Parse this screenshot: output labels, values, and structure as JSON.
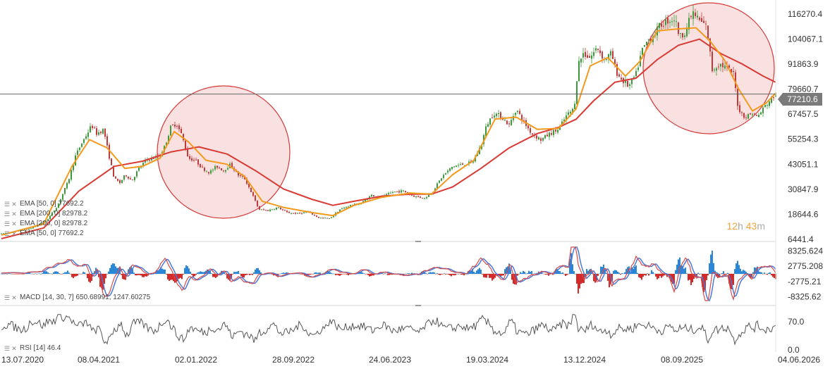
{
  "chart_data": [
    {
      "type": "candlestick",
      "y_ticks": [
        "116270.4",
        "104067.1",
        "91863.9",
        "79660.7",
        "67457.5",
        "55254.3",
        "43051.1",
        "30847.9",
        "18644.6",
        "6441.4"
      ],
      "ylim": [
        6441.4,
        122372
      ],
      "x_ticks": [
        "13.07.2020",
        "08.04.2021",
        "02.01.2022",
        "28.09.2022",
        "24.06.2023",
        "19.03.2024",
        "13.12.2024",
        "08.09.2025",
        "04.06.2026"
      ],
      "current_price": "77210.6",
      "timer": {
        "hours": "12",
        "h_label": "h",
        "minutes": "43",
        "m_label": "m"
      },
      "legend": [
        "EMA [50, 0] 77692.2",
        "EMA [200, 0] 82978.2",
        "EMA [200, 0] 82978.2",
        "EMA [50, 0] 77692.2"
      ],
      "close_series": [
        [
          0,
          9200
        ],
        [
          40,
          11500
        ],
        [
          65,
          16000
        ],
        [
          80,
          23000
        ],
        [
          95,
          35000
        ],
        [
          105,
          47000
        ],
        [
          112,
          52000
        ],
        [
          120,
          57000
        ],
        [
          128,
          62000
        ],
        [
          135,
          58000
        ],
        [
          145,
          60000
        ],
        [
          152,
          48000
        ],
        [
          160,
          36000
        ],
        [
          168,
          34000
        ],
        [
          176,
          38000
        ],
        [
          185,
          35000
        ],
        [
          195,
          41000
        ],
        [
          205,
          45000
        ],
        [
          215,
          46000
        ],
        [
          225,
          47500
        ],
        [
          232,
          52000
        ],
        [
          240,
          61000
        ],
        [
          248,
          63000
        ],
        [
          256,
          57000
        ],
        [
          265,
          46000
        ],
        [
          275,
          45000
        ],
        [
          285,
          41000
        ],
        [
          295,
          39000
        ],
        [
          305,
          42000
        ],
        [
          315,
          40000
        ],
        [
          325,
          43000
        ],
        [
          335,
          38000
        ],
        [
          345,
          36000
        ],
        [
          355,
          29000
        ],
        [
          365,
          21000
        ],
        [
          378,
          20500
        ],
        [
          392,
          22000
        ],
        [
          405,
          19500
        ],
        [
          420,
          19000
        ],
        [
          435,
          19800
        ],
        [
          450,
          17000
        ],
        [
          465,
          16500
        ],
        [
          480,
          21000
        ],
        [
          495,
          23000
        ],
        [
          510,
          24000
        ],
        [
          525,
          28000
        ],
        [
          540,
          27000
        ],
        [
          555,
          29500
        ],
        [
          570,
          30000
        ],
        [
          585,
          27500
        ],
        [
          600,
          26500
        ],
        [
          612,
          30000
        ],
        [
          625,
          37000
        ],
        [
          640,
          42000
        ],
        [
          655,
          43000
        ],
        [
          668,
          44000
        ],
        [
          680,
          52000
        ],
        [
          688,
          62000
        ],
        [
          698,
          68000
        ],
        [
          710,
          66000
        ],
        [
          720,
          62000
        ],
        [
          730,
          70000
        ],
        [
          740,
          64000
        ],
        [
          752,
          58000
        ],
        [
          765,
          55000
        ],
        [
          778,
          58000
        ],
        [
          790,
          60000
        ],
        [
          802,
          67000
        ],
        [
          812,
          70000
        ],
        [
          818,
          92000
        ],
        [
          825,
          97000
        ],
        [
          835,
          95000
        ],
        [
          845,
          100000
        ],
        [
          855,
          94000
        ],
        [
          865,
          97000
        ],
        [
          872,
          88000
        ],
        [
          880,
          84000
        ],
        [
          890,
          81000
        ],
        [
          900,
          87000
        ],
        [
          908,
          98000
        ],
        [
          916,
          103000
        ],
        [
          925,
          106000
        ],
        [
          935,
          111000
        ],
        [
          945,
          113000
        ],
        [
          955,
          114000
        ],
        [
          962,
          105000
        ],
        [
          970,
          108000
        ],
        [
          980,
          117000
        ],
        [
          990,
          113000
        ],
        [
          1000,
          110000
        ],
        [
          1008,
          89000
        ],
        [
          1018,
          92000
        ],
        [
          1028,
          90000
        ],
        [
          1038,
          87000
        ],
        [
          1045,
          70000
        ],
        [
          1055,
          66000
        ],
        [
          1065,
          68000
        ],
        [
          1072,
          66000
        ],
        [
          1082,
          71000
        ],
        [
          1092,
          75000
        ],
        [
          1098,
          77210
        ]
      ],
      "ema50": [
        [
          0,
          8500
        ],
        [
          60,
          14000
        ],
        [
          100,
          42000
        ],
        [
          125,
          55000
        ],
        [
          150,
          51000
        ],
        [
          175,
          41000
        ],
        [
          200,
          42000
        ],
        [
          225,
          46000
        ],
        [
          245,
          59000
        ],
        [
          265,
          54000
        ],
        [
          290,
          45000
        ],
        [
          320,
          43000
        ],
        [
          345,
          37000
        ],
        [
          370,
          25000
        ],
        [
          400,
          22000
        ],
        [
          440,
          19500
        ],
        [
          470,
          18000
        ],
        [
          500,
          23000
        ],
        [
          540,
          27000
        ],
        [
          580,
          29000
        ],
        [
          610,
          28500
        ],
        [
          640,
          38000
        ],
        [
          670,
          45000
        ],
        [
          700,
          65000
        ],
        [
          730,
          66000
        ],
        [
          760,
          60000
        ],
        [
          790,
          60500
        ],
        [
          815,
          70000
        ],
        [
          835,
          91000
        ],
        [
          860,
          95000
        ],
        [
          885,
          86000
        ],
        [
          905,
          93000
        ],
        [
          930,
          108000
        ],
        [
          960,
          109000
        ],
        [
          985,
          109500
        ],
        [
          1005,
          103000
        ],
        [
          1025,
          94000
        ],
        [
          1045,
          80000
        ],
        [
          1065,
          69000
        ],
        [
          1085,
          73000
        ],
        [
          1098,
          77692
        ]
      ],
      "ema200": [
        [
          0,
          6800
        ],
        [
          60,
          12000
        ],
        [
          110,
          30000
        ],
        [
          160,
          42000
        ],
        [
          200,
          44500
        ],
        [
          240,
          49000
        ],
        [
          280,
          51500
        ],
        [
          320,
          48000
        ],
        [
          360,
          40000
        ],
        [
          400,
          31000
        ],
        [
          440,
          26000
        ],
        [
          470,
          23000
        ],
        [
          500,
          25000
        ],
        [
          540,
          27500
        ],
        [
          580,
          28500
        ],
        [
          610,
          28500
        ],
        [
          640,
          32000
        ],
        [
          680,
          41000
        ],
        [
          720,
          51000
        ],
        [
          760,
          58000
        ],
        [
          790,
          61000
        ],
        [
          815,
          65000
        ],
        [
          840,
          74000
        ],
        [
          870,
          83000
        ],
        [
          900,
          85000
        ],
        [
          930,
          94000
        ],
        [
          960,
          101000
        ],
        [
          990,
          104000
        ],
        [
          1020,
          97000
        ],
        [
          1050,
          92000
        ],
        [
          1080,
          86000
        ],
        [
          1098,
          82978
        ]
      ],
      "highlight_circles": [
        "2022 bear market zone",
        "2025-2026 top zone"
      ]
    },
    {
      "type": "macd",
      "label": "MACD [14, 30, 7] 650.68991, 1247.60275",
      "y_ticks": [
        "8325.624",
        "2775.208",
        "-2775.21",
        "-8325.62"
      ],
      "ylim": [
        -11100,
        11100
      ]
    },
    {
      "type": "rsi",
      "label": "RSI [14] 46.4",
      "y_ticks": [
        "70.0",
        "0.0"
      ],
      "ylim": [
        0,
        100
      ]
    }
  ],
  "colors": {
    "ema_fast": "#f39a1e",
    "ema_slow": "#d93a33",
    "candle_up": "#3a9a3a",
    "candle_down": "#c03a3a",
    "circle_fill": "rgba(226,90,90,0.18)",
    "circle_stroke": "#d43a3a",
    "macd_line": "#d84a4a",
    "signal_line": "#4a7ad8",
    "hist_up": "#2a86d6",
    "hist_down": "#d42a2a",
    "rsi_line": "#555555",
    "price_line": "#666666"
  }
}
